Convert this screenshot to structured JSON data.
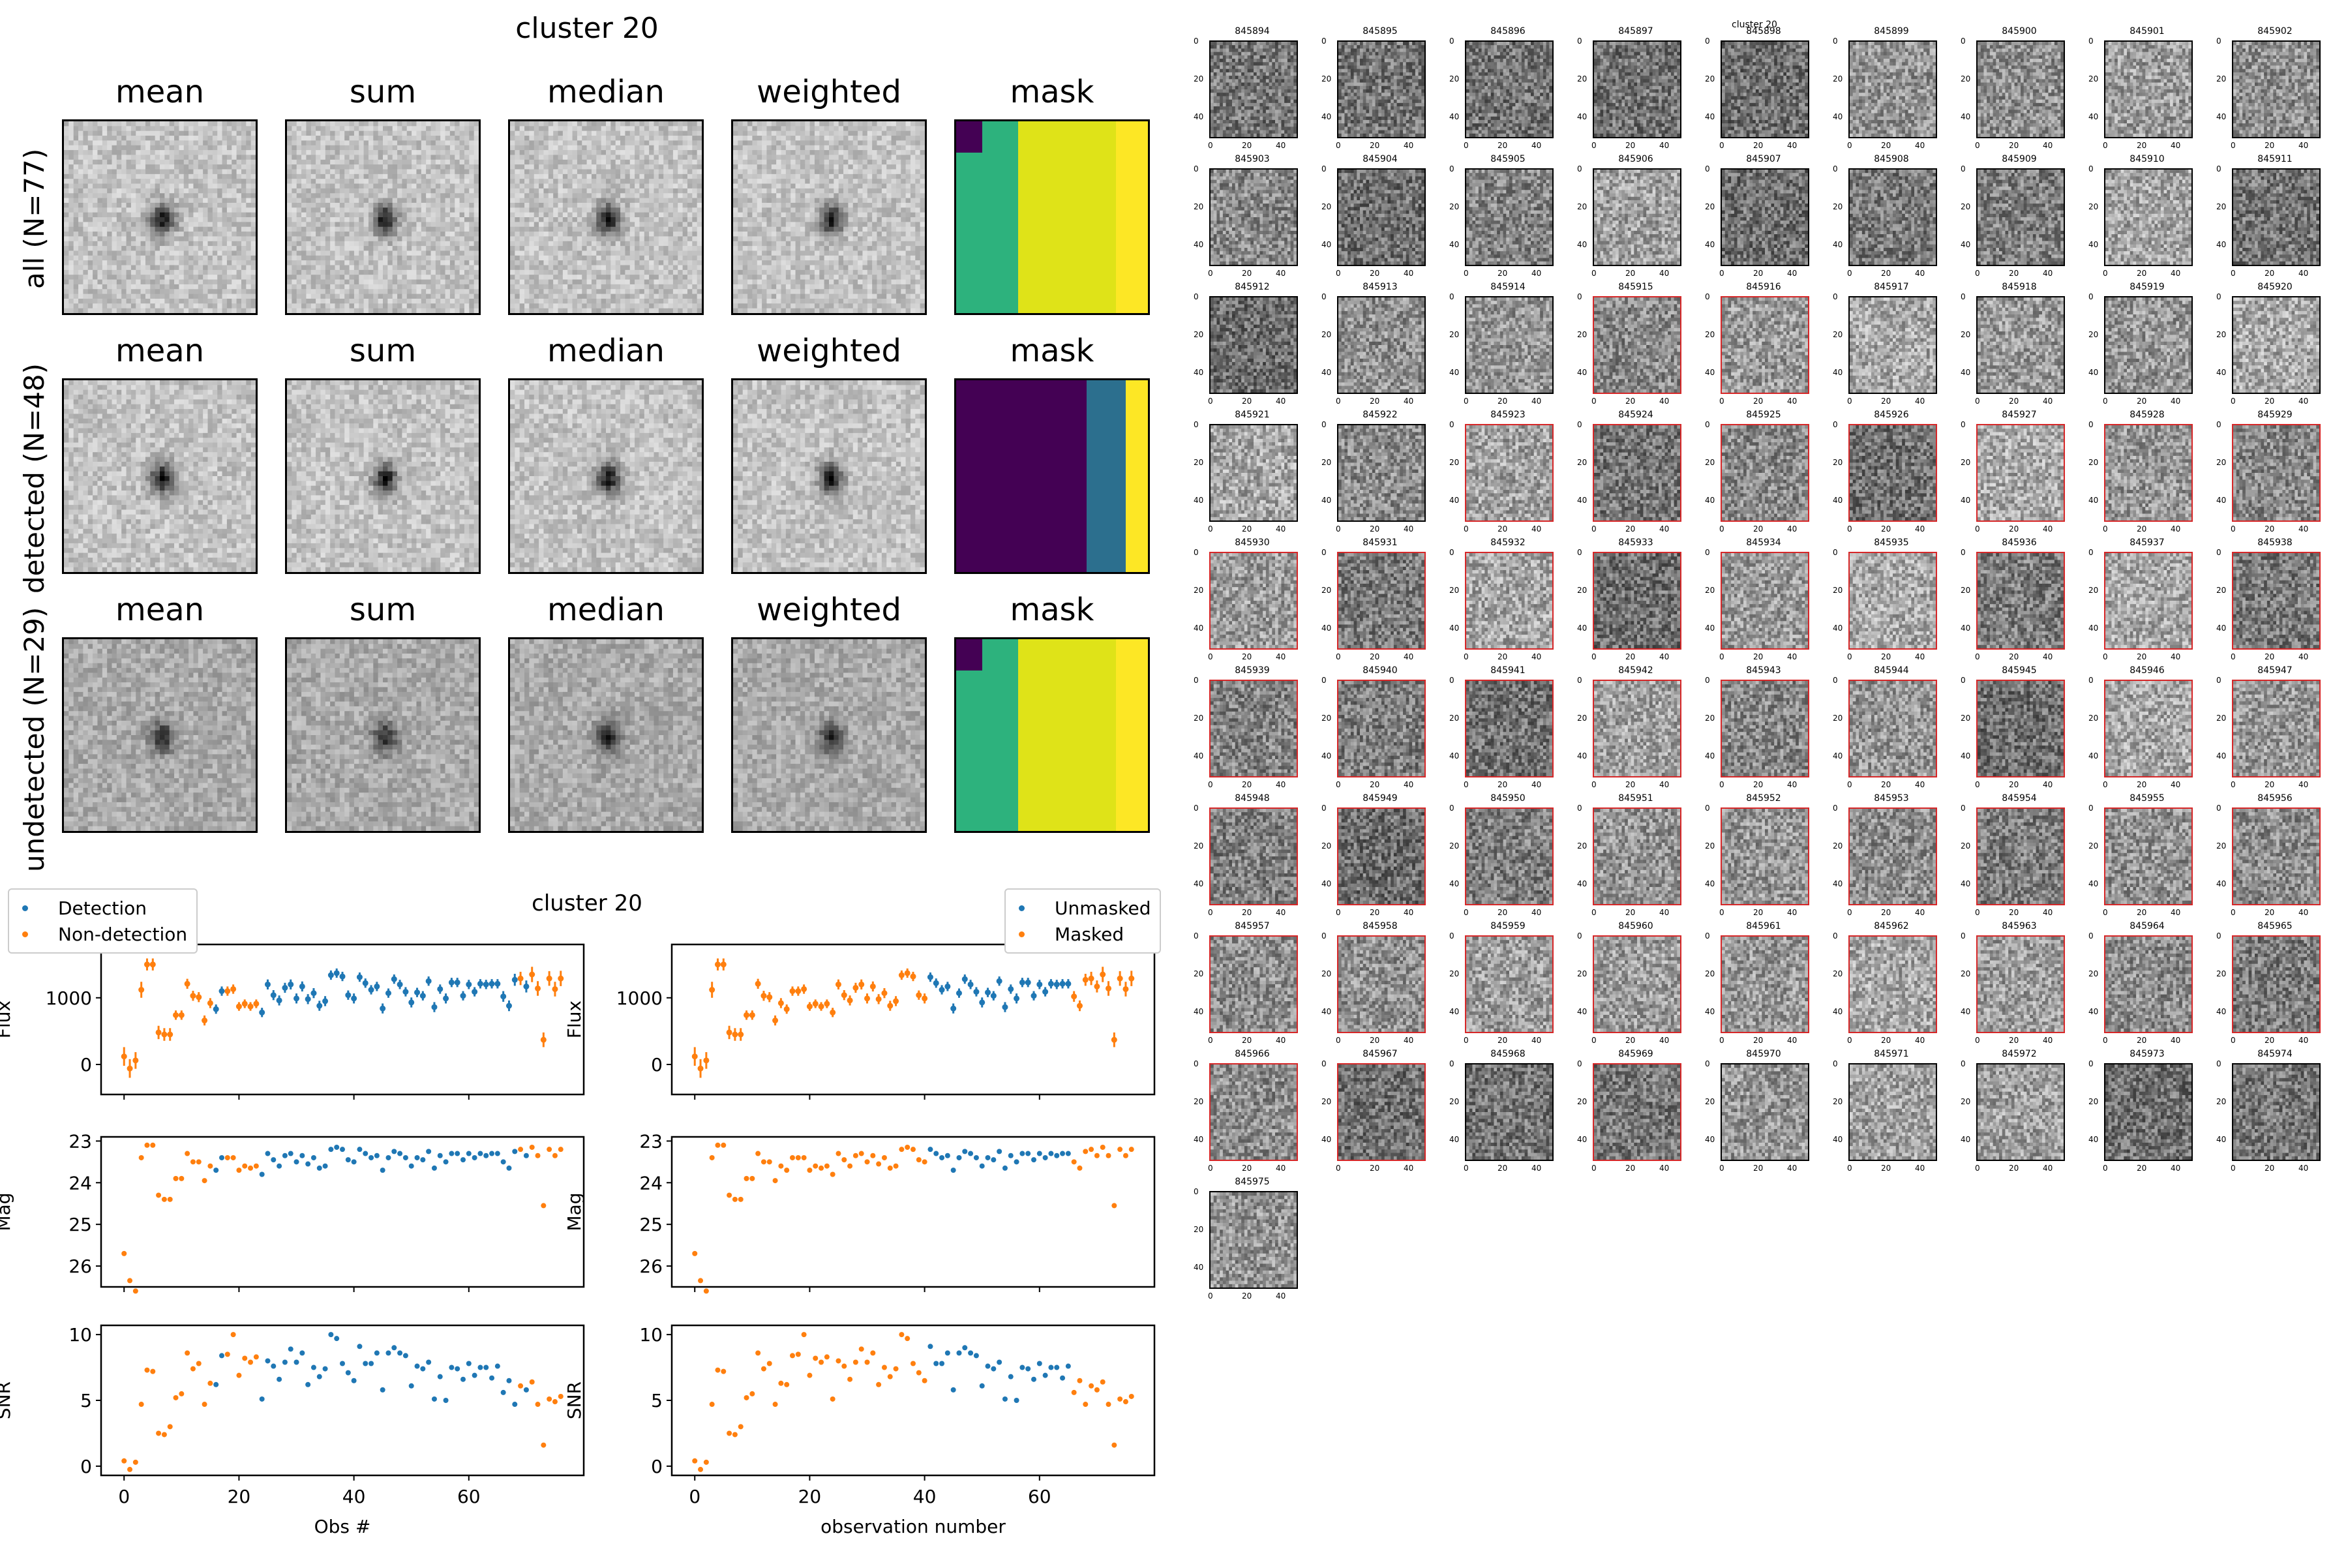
{
  "figure": {
    "stack_title": "cluster 20",
    "column_titles": [
      "mean",
      "sum",
      "median",
      "weighted",
      "mask"
    ],
    "rows": [
      {
        "label": "all (N=77)",
        "mask_colors": [
          "#440154",
          "#2db27d",
          "#dfe318",
          "#fde725"
        ]
      },
      {
        "label": "detected (N=48)",
        "mask_colors": [
          "#440154",
          "#2c6f8e",
          "#fde725"
        ]
      },
      {
        "label": "undetected (N=29)",
        "mask_colors": [
          "#440154",
          "#2db27d",
          "#dfe318",
          "#fde725"
        ]
      }
    ],
    "lightcurve_title": "cluster 20",
    "thumbnail_title": "cluster 20"
  },
  "colors": {
    "detection": "#1f77b4",
    "non_detection": "#ff7f0e",
    "red_border": "#d62728"
  },
  "chart_data": [
    {
      "type": "scatter",
      "title": "cluster 20",
      "panel": "left",
      "legend": [
        "Detection",
        "Non-detection"
      ],
      "legend_placement": "top-left",
      "xlabel": "Obs #",
      "xlim": [
        -4,
        80
      ],
      "xticks": [
        0,
        20,
        40,
        60
      ],
      "subplots": [
        {
          "ylabel": "Flux",
          "ylim": [
            -450,
            1800
          ],
          "yticks": [
            0,
            1000
          ],
          "errorbars": true
        },
        {
          "ylabel": "Mag",
          "ylim": [
            26.5,
            22.9
          ],
          "yticks": [
            23,
            24,
            25,
            26
          ],
          "inverted": true
        },
        {
          "ylabel": "SNR",
          "ylim": [
            -0.7,
            10.7
          ],
          "yticks": [
            0,
            5,
            10
          ]
        }
      ],
      "x": [
        0,
        1,
        2,
        3,
        4,
        5,
        6,
        7,
        8,
        9,
        10,
        11,
        12,
        13,
        14,
        15,
        16,
        17,
        18,
        19,
        20,
        21,
        22,
        23,
        24,
        25,
        26,
        27,
        28,
        29,
        30,
        31,
        32,
        33,
        34,
        35,
        36,
        37,
        38,
        39,
        40,
        41,
        42,
        43,
        44,
        45,
        46,
        47,
        48,
        49,
        50,
        51,
        52,
        53,
        54,
        55,
        56,
        57,
        58,
        59,
        60,
        61,
        62,
        63,
        64,
        65,
        66,
        67,
        68,
        69,
        70,
        71,
        72,
        73,
        74,
        75,
        76
      ],
      "flux": [
        120,
        -60,
        60,
        1120,
        1500,
        1500,
        480,
        450,
        450,
        740,
        740,
        1210,
        1030,
        1010,
        660,
        920,
        830,
        1100,
        1100,
        1130,
        870,
        910,
        870,
        910,
        780,
        1200,
        1040,
        960,
        1150,
        1200,
        990,
        1170,
        980,
        1070,
        880,
        950,
        1340,
        1370,
        1320,
        1040,
        990,
        1310,
        1220,
        1120,
        1170,
        840,
        1070,
        1280,
        1200,
        1090,
        930,
        1080,
        1030,
        1250,
        860,
        1130,
        990,
        1230,
        1230,
        1030,
        1200,
        1090,
        1210,
        1200,
        1210,
        1210,
        1020,
        880,
        1270,
        1290,
        1170,
        1350,
        1140,
        370,
        1290,
        1130,
        1290
      ],
      "flux_err": [
        280,
        280,
        250,
        240,
        180,
        180,
        200,
        190,
        190,
        140,
        140,
        150,
        150,
        150,
        150,
        150,
        140,
        140,
        140,
        140,
        130,
        130,
        130,
        130,
        140,
        150,
        150,
        150,
        150,
        150,
        150,
        150,
        150,
        150,
        150,
        150,
        140,
        140,
        140,
        140,
        150,
        140,
        140,
        140,
        140,
        150,
        140,
        140,
        140,
        140,
        150,
        140,
        140,
        140,
        150,
        140,
        150,
        140,
        140,
        140,
        140,
        140,
        140,
        140,
        140,
        140,
        160,
        160,
        180,
        200,
        180,
        230,
        220,
        220,
        220,
        220,
        230
      ],
      "mag": [
        25.7,
        26.35,
        26.6,
        23.4,
        23.1,
        23.1,
        24.3,
        24.4,
        24.4,
        23.9,
        23.9,
        23.3,
        23.5,
        23.5,
        23.95,
        23.6,
        23.7,
        23.4,
        23.4,
        23.4,
        23.7,
        23.6,
        23.65,
        23.6,
        23.8,
        23.3,
        23.45,
        23.6,
        23.35,
        23.3,
        23.5,
        23.35,
        23.55,
        23.4,
        23.65,
        23.6,
        23.2,
        23.15,
        23.2,
        23.45,
        23.5,
        23.2,
        23.3,
        23.4,
        23.35,
        23.7,
        23.4,
        23.25,
        23.3,
        23.4,
        23.6,
        23.4,
        23.45,
        23.25,
        23.65,
        23.35,
        23.5,
        23.3,
        23.3,
        23.45,
        23.3,
        23.4,
        23.3,
        23.35,
        23.3,
        23.3,
        23.5,
        23.65,
        23.25,
        23.2,
        23.35,
        23.15,
        23.35,
        24.55,
        23.2,
        23.35,
        23.2
      ],
      "snr": [
        0.4,
        -0.25,
        0.3,
        4.7,
        7.3,
        7.2,
        2.5,
        2.4,
        3.0,
        5.2,
        5.5,
        8.6,
        7.4,
        7.8,
        4.7,
        6.3,
        6.2,
        8.4,
        8.5,
        10.0,
        6.9,
        8.2,
        7.9,
        8.3,
        5.1,
        8.0,
        7.6,
        6.6,
        7.9,
        8.9,
        7.9,
        8.6,
        6.2,
        7.5,
        6.8,
        7.4,
        10.0,
        9.7,
        7.8,
        7.1,
        6.5,
        9.1,
        7.8,
        7.8,
        8.6,
        5.8,
        8.6,
        9.0,
        8.6,
        8.4,
        6.1,
        7.6,
        7.4,
        7.9,
        5.1,
        6.8,
        5.0,
        7.5,
        7.4,
        6.6,
        7.8,
        6.9,
        7.5,
        7.5,
        6.7,
        7.6,
        5.6,
        6.5,
        4.7,
        6.1,
        5.8,
        6.4,
        4.7,
        1.6,
        5.1,
        4.9,
        5.3
      ],
      "detected": [
        0,
        0,
        0,
        0,
        0,
        0,
        0,
        0,
        0,
        0,
        0,
        0,
        0,
        0,
        0,
        0,
        1,
        1,
        0,
        0,
        0,
        0,
        0,
        0,
        1,
        1,
        1,
        1,
        1,
        1,
        1,
        1,
        1,
        1,
        1,
        1,
        1,
        1,
        1,
        1,
        1,
        1,
        1,
        1,
        1,
        1,
        1,
        1,
        1,
        1,
        1,
        1,
        1,
        1,
        1,
        1,
        1,
        1,
        1,
        1,
        1,
        1,
        1,
        1,
        1,
        1,
        1,
        1,
        1,
        0,
        1,
        0,
        0,
        0,
        0,
        0,
        0
      ]
    },
    {
      "type": "scatter",
      "panel": "right",
      "legend": [
        "Unmasked",
        "Masked"
      ],
      "legend_placement": "top-right",
      "xlabel": "observation number",
      "xlim": [
        -4,
        80
      ],
      "xticks": [
        0,
        20,
        40,
        60
      ],
      "uses_same_values_as": "left",
      "unmasked": [
        0,
        0,
        0,
        0,
        0,
        0,
        0,
        0,
        0,
        0,
        0,
        0,
        0,
        0,
        0,
        0,
        0,
        0,
        0,
        0,
        0,
        0,
        0,
        0,
        0,
        0,
        0,
        0,
        0,
        0,
        0,
        0,
        0,
        0,
        0,
        0,
        0,
        0,
        0,
        0,
        0,
        1,
        1,
        1,
        1,
        1,
        1,
        1,
        1,
        1,
        1,
        1,
        1,
        1,
        1,
        1,
        1,
        1,
        1,
        1,
        1,
        1,
        1,
        1,
        1,
        1,
        0,
        0,
        0,
        0,
        0,
        0,
        0,
        0,
        0,
        0,
        0
      ]
    }
  ],
  "thumbnails": {
    "start_id": 845894,
    "count": 82,
    "axis_ticks": [
      "0",
      "20",
      "40"
    ],
    "red_border_ids": [
      845915,
      845916,
      845923,
      845924,
      845925,
      845926,
      845927,
      845928,
      845929,
      845930,
      845931,
      845932,
      845933,
      845934,
      845935,
      845936,
      845937,
      845938,
      845939,
      845940,
      845941,
      845942,
      845943,
      845944,
      845945,
      845946,
      845947,
      845948,
      845949,
      845950,
      845951,
      845952,
      845953,
      845954,
      845955,
      845956,
      845957,
      845958,
      845959,
      845960,
      845961,
      845962,
      845963,
      845964,
      845965,
      845966,
      845967,
      845969
    ]
  }
}
